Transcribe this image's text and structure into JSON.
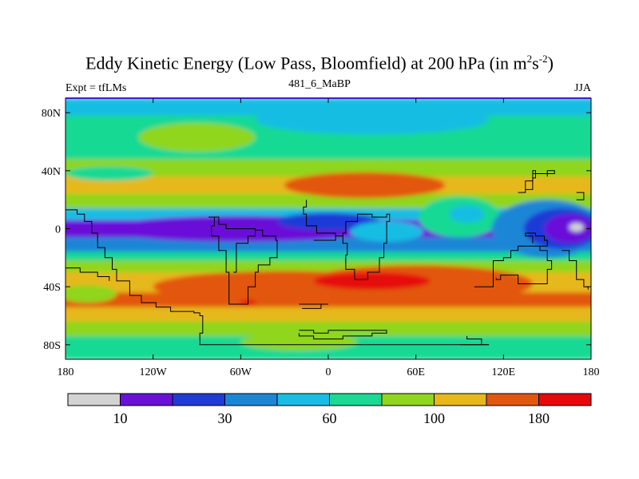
{
  "chart_data": {
    "type": "heatmap",
    "title_main": "Eddy Kinetic Energy (Low Pass, Bloomfield) at 200 hPa (in m",
    "title_sup1": "2",
    "title_mid": "s",
    "title_sup2": "-2",
    "title_end": ")",
    "left_label": "Expt = tfLMs",
    "center_label": "481_6_MaBP",
    "right_label": "JJA",
    "x_ticks": [
      {
        "value": -180,
        "label": "180"
      },
      {
        "value": -120,
        "label": "120W"
      },
      {
        "value": -60,
        "label": "60W"
      },
      {
        "value": 0,
        "label": "0"
      },
      {
        "value": 60,
        "label": "60E"
      },
      {
        "value": 120,
        "label": "120E"
      },
      {
        "value": 180,
        "label": "180"
      }
    ],
    "y_ticks": [
      {
        "value": 80,
        "label": "80N"
      },
      {
        "value": 40,
        "label": "40N"
      },
      {
        "value": 0,
        "label": "0"
      },
      {
        "value": -40,
        "label": "40S"
      },
      {
        "value": -80,
        "label": "80S"
      }
    ],
    "xlim": [
      -180,
      180
    ],
    "ylim": [
      -90,
      90
    ],
    "colorbar": {
      "colors": [
        "#d3d3d3",
        "#6a11d9",
        "#1f3ad6",
        "#1c86d6",
        "#19bde3",
        "#19d994",
        "#8fd61c",
        "#e6b81a",
        "#e2560f",
        "#e6080a"
      ],
      "labels": [
        {
          "boundary": 1,
          "label": "10"
        },
        {
          "boundary": 3,
          "label": "30"
        },
        {
          "boundary": 5,
          "label": "60"
        },
        {
          "boundary": 7,
          "label": "100"
        },
        {
          "boundary": 9,
          "label": "180"
        }
      ]
    },
    "bands": [
      {
        "lat0": 90,
        "lat1": 78,
        "level": 4
      },
      {
        "lat0": 78,
        "lat1": 48,
        "level": 5
      },
      {
        "lat0": 48,
        "lat1": 36,
        "level": 6
      },
      {
        "lat0": 36,
        "lat1": 24,
        "level": 7
      },
      {
        "lat0": 24,
        "lat1": 14,
        "level": 6
      },
      {
        "lat0": 14,
        "lat1": 6,
        "level": 4
      },
      {
        "lat0": 6,
        "lat1": -6,
        "level": 1
      },
      {
        "lat0": -6,
        "lat1": -16,
        "level": 3
      },
      {
        "lat0": -16,
        "lat1": -22,
        "level": 5
      },
      {
        "lat0": -22,
        "lat1": -30,
        "level": 6
      },
      {
        "lat0": -30,
        "lat1": -44,
        "level": 7
      },
      {
        "lat0": -44,
        "lat1": -54,
        "level": 8
      },
      {
        "lat0": -54,
        "lat1": -64,
        "level": 7
      },
      {
        "lat0": -64,
        "lat1": -74,
        "level": 6
      },
      {
        "lat0": -74,
        "lat1": -90,
        "level": 5
      }
    ],
    "blobs": [
      {
        "lon": 30,
        "lat": 75,
        "rlon": 80,
        "rlat": 10,
        "level": 4
      },
      {
        "lon": -90,
        "lat": 63,
        "rlon": 40,
        "rlat": 10,
        "level": 6
      },
      {
        "lon": -150,
        "lat": 38,
        "rlon": 30,
        "rlat": 5,
        "level": 5
      },
      {
        "lon": 25,
        "lat": 30,
        "rlon": 55,
        "rlat": 9,
        "level": 8
      },
      {
        "lon": 90,
        "lat": 8,
        "rlon": 28,
        "rlat": 14,
        "level": 5
      },
      {
        "lon": 95,
        "lat": 10,
        "rlon": 12,
        "rlat": 6,
        "level": 4
      },
      {
        "lon": 150,
        "lat": 0,
        "rlon": 38,
        "rlat": 20,
        "level": 3
      },
      {
        "lon": 160,
        "lat": 0,
        "rlon": 26,
        "rlat": 14,
        "level": 2
      },
      {
        "lon": 165,
        "lat": 0,
        "rlon": 17,
        "rlat": 10,
        "level": 1
      },
      {
        "lon": 170,
        "lat": 1,
        "rlon": 5,
        "rlat": 3,
        "level": 0
      },
      {
        "lon": -60,
        "lat": 0,
        "rlon": 95,
        "rlat": 9,
        "level": 1
      },
      {
        "lon": 0,
        "lat": 5,
        "rlon": 35,
        "rlat": 6,
        "level": 2
      },
      {
        "lon": 40,
        "lat": -2,
        "rlon": 25,
        "rlat": 7,
        "level": 4
      },
      {
        "lon": -30,
        "lat": -40,
        "rlon": 90,
        "rlat": 11,
        "level": 8
      },
      {
        "lon": 60,
        "lat": -38,
        "rlon": 80,
        "rlat": 13,
        "level": 8
      },
      {
        "lon": 30,
        "lat": -36,
        "rlon": 40,
        "rlat": 6,
        "level": 9
      },
      {
        "lon": -55,
        "lat": -51,
        "rlon": 6,
        "rlat": 2,
        "level": 9
      },
      {
        "lon": -165,
        "lat": -45,
        "rlon": 20,
        "rlat": 6,
        "level": 6
      },
      {
        "lon": -20,
        "lat": -78,
        "rlon": 40,
        "rlat": 6,
        "level": 6
      }
    ],
    "coastlines": [
      [
        [
          -180,
          13
        ],
        [
          -172,
          13
        ],
        [
          -172,
          10
        ],
        [
          -167,
          5
        ],
        [
          -162,
          -3
        ],
        [
          -158,
          -13
        ],
        [
          -153,
          -20
        ],
        [
          -148,
          -28
        ],
        [
          -145,
          -36
        ],
        [
          -136,
          -46
        ],
        [
          -128,
          -51
        ],
        [
          -118,
          -54
        ],
        [
          -108,
          -57
        ],
        [
          -92,
          -58
        ],
        [
          -88,
          -60
        ],
        [
          -86,
          -72
        ],
        [
          -88,
          -80
        ],
        [
          -76,
          -80
        ],
        [
          -40,
          -80
        ],
        [
          0,
          -80
        ],
        [
          40,
          -80
        ],
        [
          80,
          -80
        ],
        [
          110,
          -80
        ]
      ],
      [
        [
          -180,
          -27
        ],
        [
          -170,
          -30
        ],
        [
          -158,
          -33
        ],
        [
          -150,
          -36
        ]
      ],
      [
        [
          -65,
          -30
        ],
        [
          -63,
          -10
        ],
        [
          -55,
          -5
        ],
        [
          -50,
          0
        ],
        [
          -60,
          0
        ],
        [
          -70,
          3
        ],
        [
          -75,
          8
        ],
        [
          -82,
          8
        ],
        [
          -78,
          2
        ],
        [
          -80,
          -5
        ],
        [
          -75,
          -15
        ],
        [
          -70,
          -22
        ],
        [
          -70,
          -30
        ],
        [
          -68,
          -52
        ],
        [
          -58,
          -52
        ],
        [
          -55,
          -40
        ],
        [
          -50,
          -30
        ],
        [
          -48,
          -25
        ],
        [
          -40,
          -20
        ],
        [
          -35,
          -8
        ],
        [
          -36,
          -5
        ],
        [
          -45,
          -1
        ],
        [
          -50,
          0
        ]
      ],
      [
        [
          -10,
          -8
        ],
        [
          5,
          -5
        ],
        [
          10,
          -3
        ],
        [
          12,
          5
        ],
        [
          20,
          10
        ],
        [
          30,
          8
        ],
        [
          40,
          10
        ],
        [
          42,
          5
        ],
        [
          40,
          -10
        ],
        [
          38,
          -20
        ],
        [
          35,
          -30
        ],
        [
          27,
          -35
        ],
        [
          20,
          -35
        ],
        [
          18,
          -28
        ],
        [
          12,
          -18
        ],
        [
          13,
          -10
        ],
        [
          10,
          -5
        ],
        [
          5,
          -3
        ],
        [
          -8,
          2
        ],
        [
          -15,
          10
        ],
        [
          -17,
          15
        ],
        [
          -15,
          20
        ]
      ],
      [
        [
          100,
          -40
        ],
        [
          113,
          -22
        ],
        [
          120,
          -20
        ],
        [
          125,
          -15
        ],
        [
          130,
          -12
        ],
        [
          140,
          -12
        ],
        [
          145,
          -15
        ],
        [
          150,
          -22
        ],
        [
          153,
          -28
        ],
        [
          150,
          -38
        ],
        [
          140,
          -38
        ],
        [
          130,
          -32
        ],
        [
          118,
          -35
        ],
        [
          115,
          -34
        ]
      ],
      [
        [
          90,
          -80
        ],
        [
          110,
          -80
        ],
        [
          105,
          -76
        ],
        [
          95,
          -74
        ]
      ],
      [
        [
          -20,
          -70
        ],
        [
          -10,
          -72
        ],
        [
          0,
          -70
        ],
        [
          15,
          -70
        ],
        [
          30,
          -70
        ],
        [
          40,
          -72
        ],
        [
          30,
          -74
        ],
        [
          10,
          -76
        ],
        [
          -10,
          -74
        ],
        [
          -20,
          -72
        ]
      ],
      [
        [
          145,
          -12
        ],
        [
          150,
          -8
        ],
        [
          148,
          -5
        ],
        [
          142,
          -3
        ],
        [
          135,
          -5
        ],
        [
          140,
          -10
        ]
      ],
      [
        [
          130,
          25
        ],
        [
          135,
          33
        ],
        [
          140,
          35
        ],
        [
          142,
          40
        ],
        [
          140,
          27
        ],
        [
          135,
          25
        ]
      ],
      [
        [
          160,
          -15
        ],
        [
          165,
          -22
        ],
        [
          170,
          -35
        ],
        [
          175,
          -40
        ],
        [
          178,
          -42
        ]
      ],
      [
        [
          -20,
          -52
        ],
        [
          -10,
          -52
        ],
        [
          0,
          -52
        ],
        [
          -5,
          -55
        ],
        [
          -18,
          -55
        ]
      ],
      [
        [
          170,
          20
        ],
        [
          175,
          20
        ],
        [
          175,
          25
        ],
        [
          170,
          25
        ]
      ],
      [
        [
          140,
          38
        ],
        [
          150,
          40
        ],
        [
          155,
          38
        ],
        [
          150,
          36
        ]
      ]
    ]
  }
}
